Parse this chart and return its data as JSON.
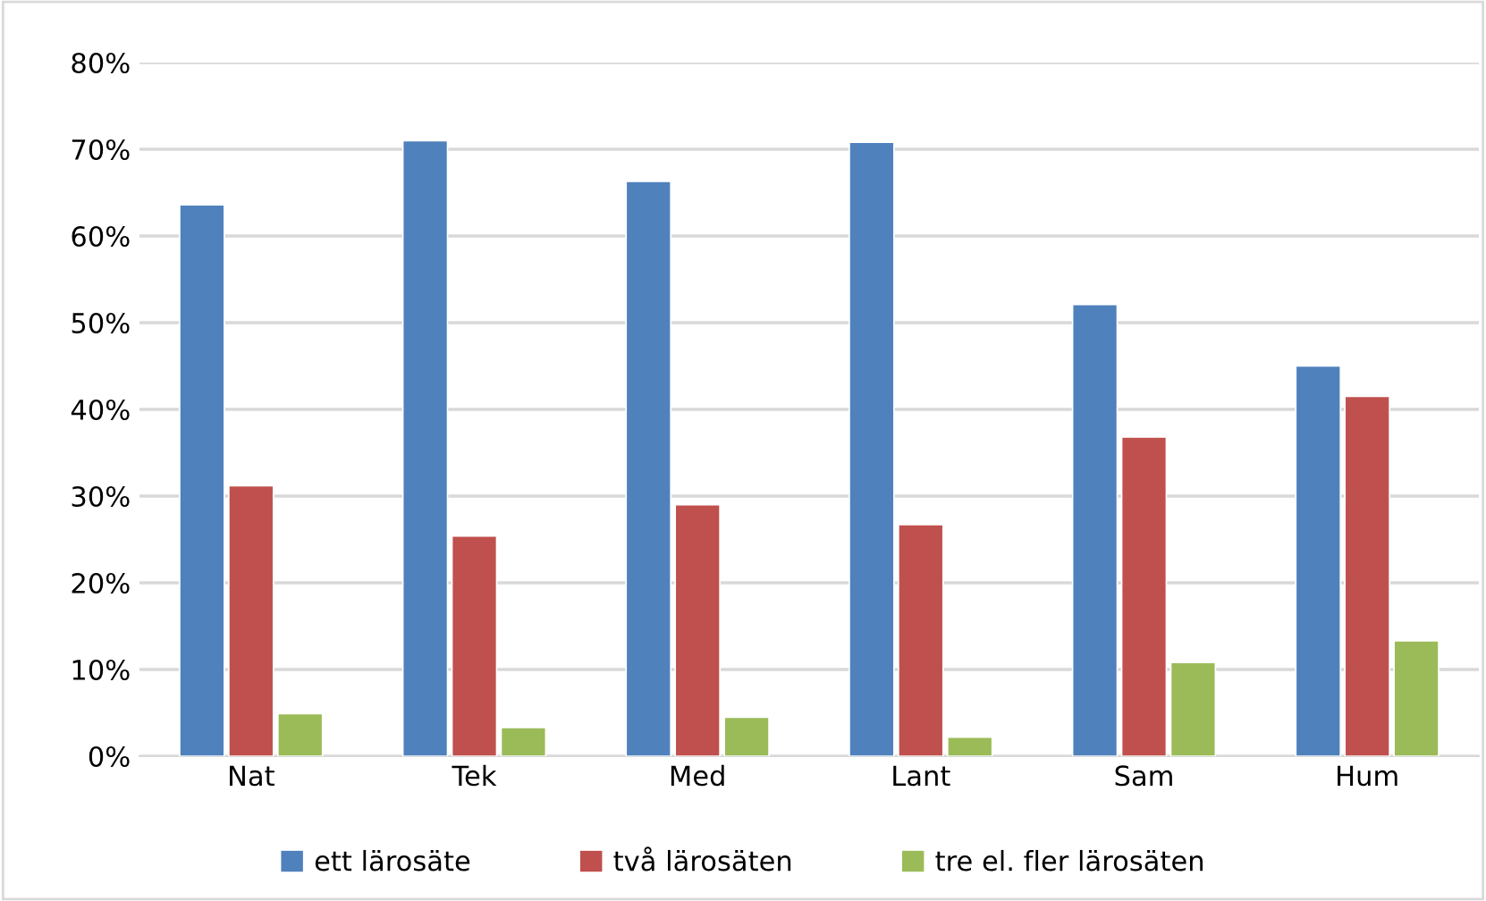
{
  "chart_data": {
    "type": "bar",
    "categories": [
      "Nat",
      "Tek",
      "Med",
      "Lant",
      "Sam",
      "Hum"
    ],
    "series": [
      {
        "name": "ett lärosäte",
        "color": "#4f81bd",
        "values": [
          63.6,
          71.0,
          66.3,
          70.8,
          52.1,
          45.0
        ]
      },
      {
        "name": "två lärosäten",
        "color": "#c0504d",
        "values": [
          31.2,
          25.4,
          29.0,
          26.7,
          36.8,
          41.5
        ]
      },
      {
        "name": "tre el. fler lärosäten",
        "color": "#9bbb59",
        "values": [
          4.9,
          3.3,
          4.5,
          2.2,
          10.8,
          13.3
        ]
      }
    ],
    "ylim": [
      0,
      80
    ],
    "yticks": [
      {
        "value": 0,
        "label": "0%"
      },
      {
        "value": 10,
        "label": "10%"
      },
      {
        "value": 20,
        "label": "20%"
      },
      {
        "value": 30,
        "label": "30%"
      },
      {
        "value": 40,
        "label": "40%"
      },
      {
        "value": 50,
        "label": "50%"
      },
      {
        "value": 60,
        "label": "60%"
      },
      {
        "value": 70,
        "label": "70%"
      },
      {
        "value": 80,
        "label": "80%"
      }
    ],
    "grid": "y",
    "legend": "bottom"
  }
}
